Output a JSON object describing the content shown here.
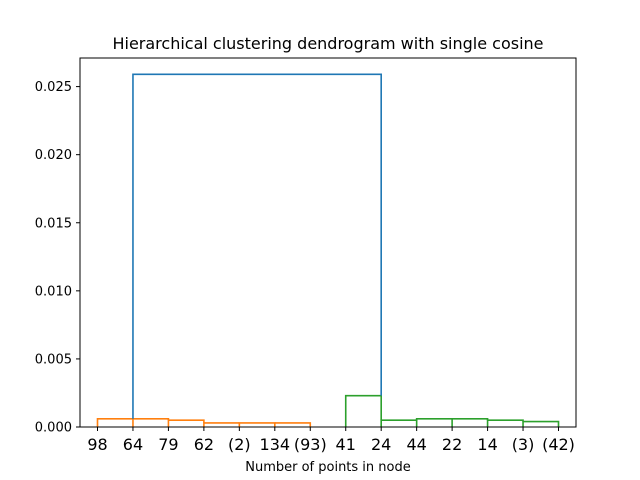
{
  "chart_data": {
    "type": "dendrogram",
    "title": "Hierarchical clustering dendrogram with single cosine",
    "xlabel": "Number of points in node",
    "ylabel": "",
    "ylim": [
      0,
      0.0271
    ],
    "yticks": [
      0.0,
      0.005,
      0.01,
      0.015,
      0.02,
      0.025
    ],
    "ytick_labels": [
      "0.000",
      "0.005",
      "0.010",
      "0.015",
      "0.020",
      "0.025"
    ],
    "leaves": [
      "98",
      "64",
      "79",
      "62",
      "(2)",
      "134",
      "(93)",
      "41",
      "24",
      "44",
      "22",
      "14",
      "(3)",
      "(42)"
    ],
    "link_color_threshold_note": "",
    "links": [
      {
        "left_leaf": 4,
        "right_leaf": 5,
        "height": 0.0003,
        "color": "#ff7f0e"
      },
      {
        "left_leaf": 5,
        "right_leaf": 6,
        "height": 0.0003,
        "color": "#ff7f0e"
      },
      {
        "left_leaf": 3,
        "right_leaf": 4,
        "height": 0.0003,
        "color": "#ff7f0e"
      },
      {
        "left_leaf": 2,
        "right_leaf": 3,
        "height": 0.0005,
        "color": "#ff7f0e"
      },
      {
        "left_leaf": 1,
        "right_leaf": 2,
        "height": 0.0006,
        "color": "#ff7f0e"
      },
      {
        "left_leaf": 0,
        "right_leaf": 1,
        "height": 0.0006,
        "color": "#ff7f0e"
      },
      {
        "left_leaf": 12,
        "right_leaf": 13,
        "height": 0.0004,
        "color": "#2ca02c"
      },
      {
        "left_leaf": 11,
        "right_leaf": 12,
        "height": 0.0005,
        "color": "#2ca02c"
      },
      {
        "left_leaf": 10,
        "right_leaf": 11,
        "height": 0.0006,
        "color": "#2ca02c"
      },
      {
        "left_leaf": 9,
        "right_leaf": 10,
        "height": 0.0006,
        "color": "#2ca02c"
      },
      {
        "left_leaf": 8,
        "right_leaf": 9,
        "height": 0.0005,
        "color": "#2ca02c"
      },
      {
        "left_leaf": 7,
        "right_leaf": 8,
        "height": 0.0023,
        "color": "#2ca02c"
      },
      {
        "left_leaf": 1,
        "right_leaf": 8,
        "height": 0.0259,
        "color": "#1f77b4"
      }
    ],
    "colors": {
      "cluster_a": "#ff7f0e",
      "cluster_b": "#2ca02c",
      "root": "#1f77b4"
    }
  }
}
